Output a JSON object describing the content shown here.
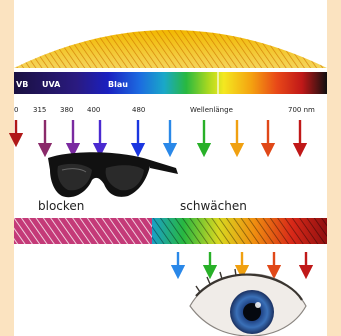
{
  "spectrum_bar": {
    "band_labels": [
      "VB",
      "UVA",
      "Blau"
    ]
  },
  "wavelength_scale": {
    "ticks": [
      "0",
      "315",
      "380",
      "400",
      "480"
    ],
    "label": "Wellenlänge",
    "end_value": "700 nm"
  },
  "labels": {
    "block": "blocken",
    "attenuate": "schwächen"
  },
  "colors": {
    "background": "#fbe3c0",
    "arrows_top": [
      "#b01818",
      "#8a2a6a",
      "#7a2aa0",
      "#4a2ad0",
      "#1a36e0",
      "#2a88e8",
      "#28b028",
      "#f0a010",
      "#e04818",
      "#c01818"
    ],
    "arrows_bottom": [
      "#2a88e8",
      "#28b028",
      "#f0a010",
      "#e04818",
      "#c01818"
    ]
  },
  "icons": [
    "sunglasses-icon",
    "eye-icon",
    "sun-dome"
  ]
}
